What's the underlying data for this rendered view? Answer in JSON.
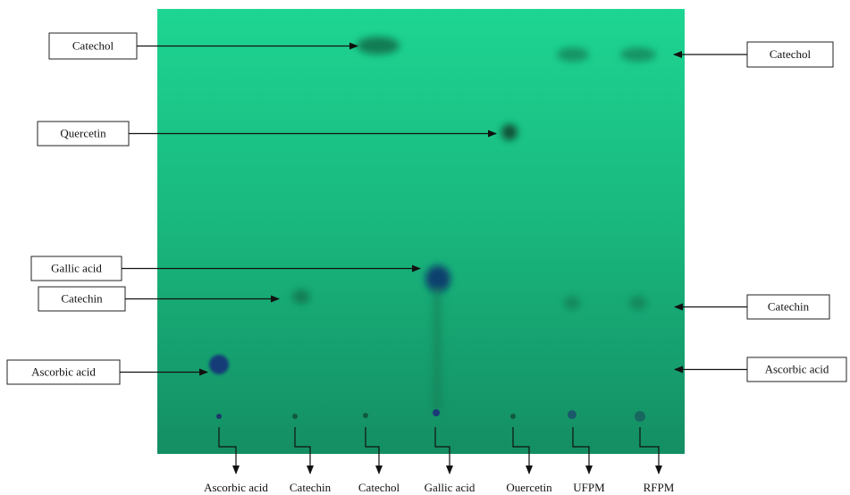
{
  "left_labels": [
    "Catechol",
    "Quercetin",
    "Gallic acid",
    "Catechin",
    "Ascorbic acid"
  ],
  "right_labels": [
    "Catechol",
    "Catechin",
    "Ascorbic acid"
  ],
  "lane_labels": [
    "Ascorbic acid",
    "Catechin",
    "Catechol",
    "Gallic acid",
    "Ouercetin",
    "UFPM",
    "RFPM"
  ]
}
